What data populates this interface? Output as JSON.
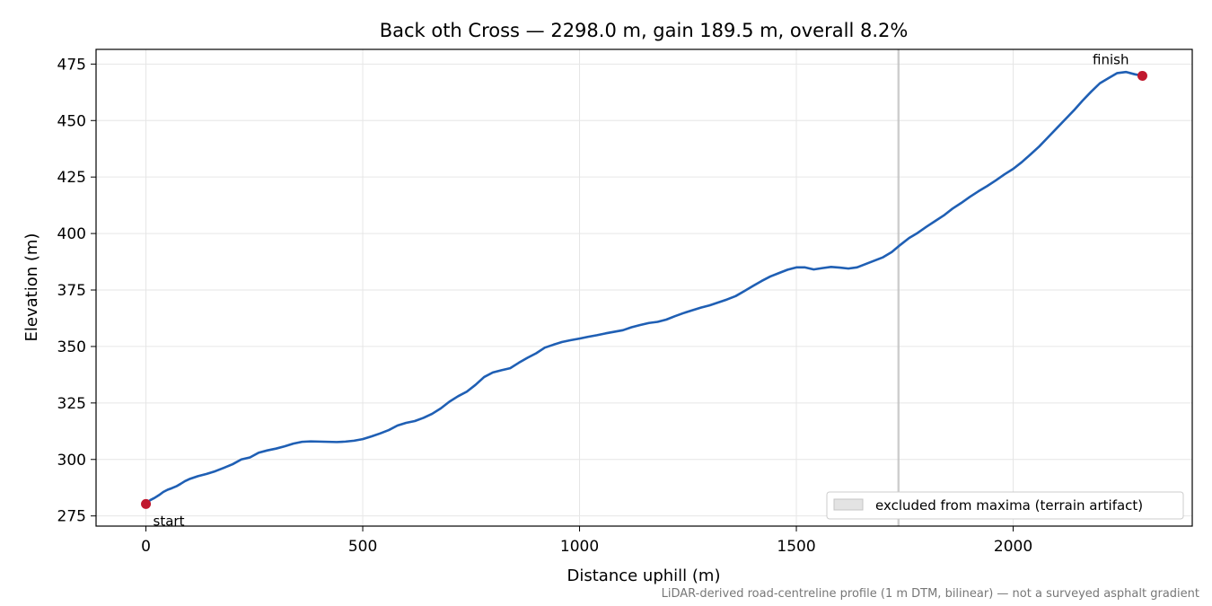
{
  "chart_data": {
    "type": "line",
    "title": "Back oth Cross — 2298.0 m, gain 189.5 m, overall 8.2%",
    "xlabel": "Distance uphill (m)",
    "ylabel": "Elevation (m)",
    "xlim": [
      -115,
      2413
    ],
    "ylim": [
      270.5,
      481.5
    ],
    "x_ticks": [
      0,
      500,
      1000,
      1500,
      2000
    ],
    "y_ticks": [
      275,
      300,
      325,
      350,
      375,
      400,
      425,
      450,
      475
    ],
    "grid": true,
    "series_color": "#1f5fb4",
    "marker_color": "#c0182e",
    "series": [
      {
        "x": [
          0,
          10,
          20,
          30,
          40,
          50,
          60,
          70,
          80,
          90,
          100,
          120,
          140,
          160,
          180,
          200,
          220,
          240,
          260,
          280,
          300,
          320,
          340,
          360,
          380,
          400,
          420,
          440,
          460,
          480,
          500,
          520,
          540,
          560,
          580,
          600,
          620,
          640,
          660,
          680,
          700,
          720,
          740,
          760,
          780,
          800,
          820,
          840,
          860,
          880,
          900,
          920,
          940,
          960,
          980,
          1000,
          1020,
          1040,
          1060,
          1080,
          1100,
          1120,
          1140,
          1160,
          1180,
          1200,
          1220,
          1240,
          1260,
          1280,
          1300,
          1320,
          1340,
          1360,
          1380,
          1400,
          1420,
          1440,
          1460,
          1480,
          1500,
          1520,
          1540,
          1560,
          1580,
          1600,
          1620,
          1640,
          1660,
          1680,
          1700,
          1720,
          1740,
          1760,
          1780,
          1800,
          1820,
          1840,
          1860,
          1880,
          1900,
          1920,
          1940,
          1960,
          1980,
          2000,
          2020,
          2040,
          2060,
          2080,
          2100,
          2120,
          2140,
          2160,
          2180,
          2200,
          2220,
          2240,
          2260,
          2280,
          2298
        ],
        "y": [
          280.3,
          282.0,
          283.0,
          284.2,
          285.6,
          286.6,
          287.3,
          288.1,
          289.2,
          290.4,
          291.3,
          292.6,
          293.6,
          294.8,
          296.3,
          297.9,
          300.0,
          300.9,
          303.0,
          304.0,
          304.8,
          305.8,
          307.0,
          307.8,
          308.0,
          307.9,
          307.8,
          307.7,
          307.9,
          308.3,
          309.0,
          310.2,
          311.5,
          313.0,
          315.0,
          316.2,
          317.0,
          318.4,
          320.2,
          322.6,
          325.6,
          328.0,
          330.0,
          333.0,
          336.5,
          338.5,
          339.5,
          340.4,
          342.8,
          345.0,
          347.0,
          349.5,
          350.8,
          352.0,
          352.8,
          353.5,
          354.3,
          355.0,
          355.8,
          356.5,
          357.2,
          358.5,
          359.5,
          360.4,
          360.9,
          361.9,
          363.4,
          364.8,
          366.0,
          367.2,
          368.2,
          369.5,
          370.8,
          372.3,
          374.5,
          376.8,
          379.0,
          381.0,
          382.5,
          384.0,
          385.0,
          385.0,
          384.1,
          384.7,
          385.2,
          384.9,
          384.5,
          385.0,
          386.5,
          388.0,
          389.5,
          391.8,
          395.0,
          398.0,
          400.3,
          403.0,
          405.5,
          408.0,
          411.0,
          413.5,
          416.2,
          418.7,
          421.0,
          423.5,
          426.2,
          428.6,
          431.6,
          435.0,
          438.5,
          442.5,
          446.5,
          450.5,
          454.5,
          458.8,
          462.8,
          466.5,
          468.8,
          471.0,
          471.5,
          470.5,
          469.8
        ]
      }
    ],
    "annotations": [
      {
        "text": "start",
        "x": 0,
        "y": 280.3
      },
      {
        "text": "finish",
        "x": 2298,
        "y": 469.8
      }
    ],
    "excluded_band": {
      "x_start": 1733,
      "x_end": 1738,
      "color": "#bdbdbd"
    },
    "legend": {
      "label": "excluded from maxima (terrain artifact)",
      "placement": "lower-right"
    },
    "footnote": "LiDAR-derived road-centreline profile (1 m DTM, bilinear) — not a surveyed asphalt gradient"
  }
}
